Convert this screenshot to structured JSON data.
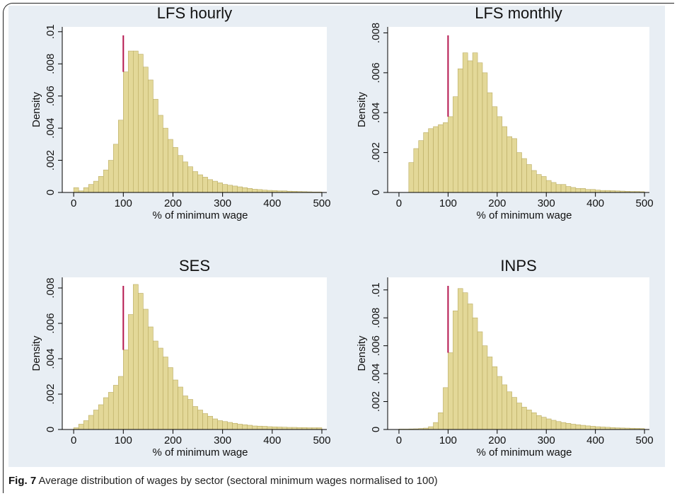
{
  "chart_data": [
    {
      "type": "histogram",
      "title": "LFS hourly",
      "xlabel": "% of minimum wage",
      "ylabel": "Density",
      "bins": [
        0,
        10,
        20,
        30,
        40,
        50,
        60,
        70,
        80,
        90,
        100,
        110,
        120,
        130,
        140,
        150,
        160,
        170,
        180,
        190,
        200,
        210,
        220,
        230,
        240,
        250,
        260,
        270,
        280,
        290,
        300,
        310,
        320,
        330,
        340,
        350,
        360,
        370,
        380,
        390,
        400,
        410,
        420,
        430,
        440,
        450,
        460,
        470,
        480,
        490,
        500
      ],
      "values": [
        0.0003,
        0.0001,
        0.0003,
        0.0005,
        0.0007,
        0.001,
        0.0014,
        0.002,
        0.003,
        0.0045,
        0.0075,
        0.0088,
        0.0088,
        0.0086,
        0.0078,
        0.007,
        0.0058,
        0.0048,
        0.004,
        0.0033,
        0.0028,
        0.0023,
        0.0019,
        0.0016,
        0.0013,
        0.0011,
        0.00095,
        0.0008,
        0.0007,
        0.0006,
        0.0005,
        0.00045,
        0.0004,
        0.00035,
        0.0003,
        0.00025,
        0.0002,
        0.00018,
        0.00015,
        0.00013,
        0.00012,
        0.0001,
        0.0001,
        8e-05,
        7e-05,
        6e-05,
        5e-05,
        4e-05,
        3e-05,
        3e-05
      ],
      "color": "#e3d898",
      "edge_color": "#b9ab62",
      "vline": 100,
      "vline_color": "#b5174f",
      "xlim": [
        -23,
        510
      ],
      "ylim": [
        0,
        0.0103
      ],
      "xticks": [
        0,
        100,
        200,
        300,
        400,
        500
      ],
      "yticks": [
        0,
        {
          "value": 0.002,
          "label": ".002"
        },
        {
          "value": 0.004,
          "label": ".004"
        },
        {
          "value": 0.006,
          "label": ".006"
        },
        {
          "value": 0.008,
          "label": ".008"
        },
        {
          "value": 0.01,
          "label": ".01"
        }
      ]
    },
    {
      "type": "histogram",
      "title": "LFS monthly",
      "xlabel": "% of minimum wage",
      "ylabel": "Density",
      "bins": [
        0,
        10,
        20,
        30,
        40,
        50,
        60,
        70,
        80,
        90,
        100,
        110,
        120,
        130,
        140,
        150,
        160,
        170,
        180,
        190,
        200,
        210,
        220,
        230,
        240,
        250,
        260,
        270,
        280,
        290,
        300,
        310,
        320,
        330,
        340,
        350,
        360,
        370,
        380,
        390,
        400,
        410,
        420,
        430,
        440,
        450,
        460,
        470,
        480,
        490,
        500
      ],
      "values": [
        0,
        0,
        0.0015,
        0.0022,
        0.0026,
        0.003,
        0.0032,
        0.0033,
        0.0034,
        0.0035,
        0.0038,
        0.0048,
        0.0062,
        0.007,
        0.0066,
        0.007,
        0.0065,
        0.006,
        0.005,
        0.0043,
        0.0038,
        0.0033,
        0.0028,
        0.0027,
        0.002,
        0.0017,
        0.0014,
        0.0011,
        0.0009,
        0.0008,
        0.0006,
        0.0005,
        0.0004,
        0.0004,
        0.0003,
        0.00025,
        0.0002,
        0.0002,
        0.00015,
        0.00015,
        0.00012,
        0.0001,
        0.0001,
        9e-05,
        8e-05,
        7e-05,
        6e-05,
        5e-05,
        5e-05,
        4e-05
      ],
      "color": "#e3d898",
      "edge_color": "#b9ab62",
      "vline": 100,
      "vline_color": "#b5174f",
      "xlim": [
        -23,
        510
      ],
      "ylim": [
        0,
        0.0083
      ],
      "xticks": [
        0,
        100,
        200,
        300,
        400,
        500
      ],
      "yticks": [
        0,
        {
          "value": 0.002,
          "label": ".002"
        },
        {
          "value": 0.004,
          "label": ".004"
        },
        {
          "value": 0.006,
          "label": ".006"
        },
        {
          "value": 0.008,
          "label": ".008"
        }
      ]
    },
    {
      "type": "histogram",
      "title": "SES",
      "xlabel": "% of minimum wage",
      "ylabel": "Density",
      "bins": [
        0,
        10,
        20,
        30,
        40,
        50,
        60,
        70,
        80,
        90,
        100,
        110,
        120,
        130,
        140,
        150,
        160,
        170,
        180,
        190,
        200,
        210,
        220,
        230,
        240,
        250,
        260,
        270,
        280,
        290,
        300,
        310,
        320,
        330,
        340,
        350,
        360,
        370,
        380,
        390,
        400,
        410,
        420,
        430,
        440,
        450,
        460,
        470,
        480,
        490,
        500
      ],
      "values": [
        0.0001,
        0.0003,
        0.0005,
        0.0008,
        0.0011,
        0.0014,
        0.0018,
        0.0021,
        0.0025,
        0.003,
        0.0045,
        0.0065,
        0.0082,
        0.0077,
        0.0068,
        0.0058,
        0.005,
        0.0046,
        0.0041,
        0.0035,
        0.0028,
        0.0024,
        0.0019,
        0.0017,
        0.0013,
        0.0011,
        0.0009,
        0.00075,
        0.0006,
        0.0005,
        0.00045,
        0.0004,
        0.00035,
        0.0003,
        0.00027,
        0.00024,
        0.0002,
        0.00019,
        0.00018,
        0.00016,
        0.00015,
        0.00014,
        0.00013,
        0.00012,
        0.00012,
        0.00011,
        0.00011,
        0.0001,
        0.0001,
        0.0001
      ],
      "color": "#e3d898",
      "edge_color": "#b9ab62",
      "vline": 100,
      "vline_color": "#b5174f",
      "xlim": [
        -23,
        510
      ],
      "ylim": [
        0,
        0.0086
      ],
      "xticks": [
        0,
        100,
        200,
        300,
        400,
        500
      ],
      "yticks": [
        0,
        {
          "value": 0.002,
          "label": ".002"
        },
        {
          "value": 0.004,
          "label": ".004"
        },
        {
          "value": 0.006,
          "label": ".006"
        },
        {
          "value": 0.008,
          "label": ".008"
        }
      ]
    },
    {
      "type": "histogram",
      "title": "INPS",
      "xlabel": "% of minimum wage",
      "ylabel": "Density",
      "bins": [
        0,
        10,
        20,
        30,
        40,
        50,
        60,
        70,
        80,
        90,
        100,
        110,
        120,
        130,
        140,
        150,
        160,
        170,
        180,
        190,
        200,
        210,
        220,
        230,
        240,
        250,
        260,
        270,
        280,
        290,
        300,
        310,
        320,
        330,
        340,
        350,
        360,
        370,
        380,
        390,
        400,
        410,
        420,
        430,
        440,
        450,
        460,
        470,
        480,
        490,
        500
      ],
      "values": [
        3e-05,
        3e-05,
        4e-05,
        5e-05,
        7e-05,
        0.0001,
        0.0002,
        0.0005,
        0.0012,
        0.003,
        0.0055,
        0.0085,
        0.0101,
        0.0098,
        0.009,
        0.008,
        0.007,
        0.006,
        0.0052,
        0.0045,
        0.0038,
        0.0032,
        0.0027,
        0.0023,
        0.0019,
        0.0016,
        0.0014,
        0.0012,
        0.001,
        0.00088,
        0.00076,
        0.00066,
        0.00057,
        0.0005,
        0.00044,
        0.00038,
        0.00034,
        0.0003,
        0.00026,
        0.00023,
        0.0002,
        0.00018,
        0.00016,
        0.00014,
        0.00012,
        0.00011,
        0.0001,
        9e-05,
        8e-05,
        7e-05
      ],
      "color": "#e3d898",
      "edge_color": "#b9ab62",
      "vline": 100,
      "vline_color": "#b5174f",
      "xlim": [
        -23,
        510
      ],
      "ylim": [
        0,
        0.0109
      ],
      "xticks": [
        0,
        100,
        200,
        300,
        400,
        500
      ],
      "yticks": [
        0,
        {
          "value": 0.002,
          "label": ".002"
        },
        {
          "value": 0.004,
          "label": ".004"
        },
        {
          "value": 0.006,
          "label": ".006"
        },
        {
          "value": 0.008,
          "label": ".008"
        },
        {
          "value": 0.01,
          "label": ".01"
        }
      ]
    }
  ],
  "caption": {
    "label": "Fig. 7",
    "text": "Average distribution of wages by sector (sectoral minimum wages normalised to 100)"
  }
}
